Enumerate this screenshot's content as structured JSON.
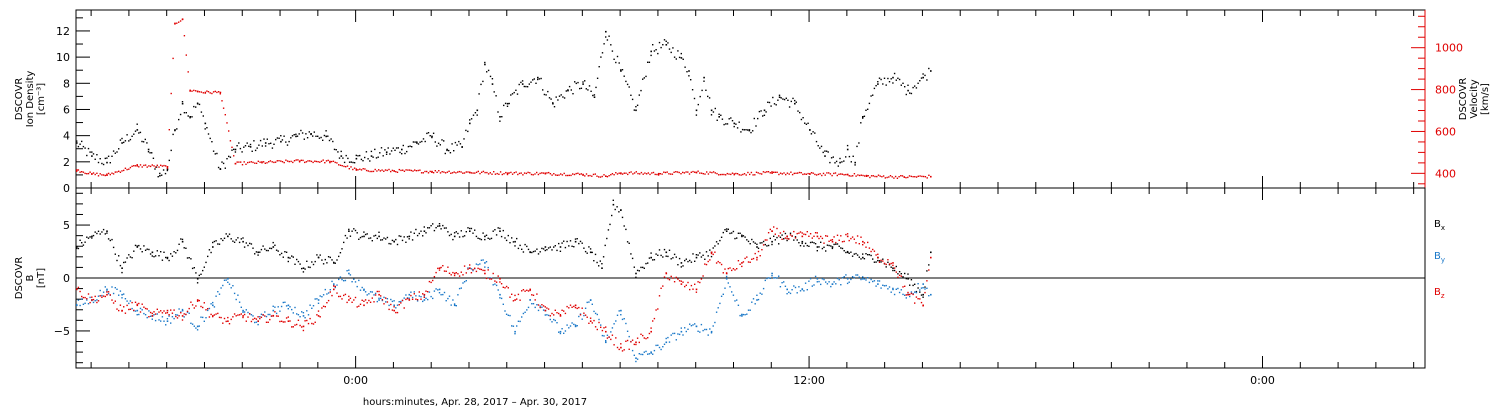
{
  "figure": {
    "xlabel": "hours:minutes, Apr. 28, 2017 – Apr. 30, 2017",
    "x_ticks": [
      {
        "label": "0:00",
        "hours": 24
      },
      {
        "label": "12:00",
        "hours": 36
      },
      {
        "label": "0:00",
        "hours": 48
      }
    ]
  },
  "chart_data": [
    {
      "type": "scatter",
      "name": "density-velocity-panel",
      "ylabel_left": [
        "DSCOVR",
        "Ion Density",
        "[cm⁻³]"
      ],
      "ylabel_right": [
        "DSCOVR",
        "Velocity",
        "[km/s]"
      ],
      "x_units": "hours since Apr. 28, 2017 0:00",
      "xlim": [
        16.6,
        52.3
      ],
      "ylim_left": [
        0,
        13.6
      ],
      "ylim_right": [
        330,
        1180
      ],
      "yticks_left": [
        0,
        2,
        4,
        6,
        8,
        10,
        12
      ],
      "yticks_right": [
        400,
        600,
        800,
        1000
      ],
      "series": [
        {
          "name": "Ion Density",
          "axis": "left",
          "color": "#000000",
          "x": [
            16.6,
            17.0,
            17.4,
            17.8,
            18.2,
            18.5,
            18.8,
            19.0,
            19.2,
            19.4,
            19.6,
            19.8,
            20.0,
            20.4,
            20.8,
            21.2,
            21.6,
            22.0,
            22.4,
            22.8,
            23.2,
            23.6,
            24.0,
            24.4,
            24.8,
            25.2,
            25.6,
            26.0,
            26.4,
            26.8,
            27.0,
            27.2,
            27.4,
            27.6,
            27.8,
            28.0,
            28.4,
            28.8,
            29.2,
            29.6,
            30.0,
            30.3,
            30.6,
            31.0,
            31.4,
            31.8,
            32.2,
            32.6,
            32.8,
            33.0,
            33.2,
            33.4,
            33.6,
            34.0,
            34.4,
            34.8,
            35.2,
            35.6,
            36.0,
            36.4,
            36.8,
            37.0,
            37.2,
            37.4,
            37.8,
            38.2,
            38.6,
            39.0,
            39.2
          ],
          "values": [
            3.5,
            2.5,
            2.0,
            3.5,
            4.5,
            3.0,
            1.0,
            1.5,
            4.5,
            6.5,
            5.5,
            6.5,
            5.0,
            1.5,
            3.0,
            3.2,
            3.5,
            3.6,
            4.0,
            4.2,
            4.0,
            2.5,
            2.3,
            2.5,
            2.8,
            3.0,
            3.5,
            4.0,
            3.0,
            3.2,
            5.0,
            6.0,
            9.5,
            8.0,
            5.5,
            6.5,
            8.0,
            8.5,
            6.5,
            7.5,
            8.0,
            7.0,
            12.0,
            9.0,
            6.0,
            10.5,
            11.0,
            10.0,
            9.0,
            6.0,
            8.5,
            6.0,
            5.5,
            5.0,
            4.5,
            6.0,
            7.0,
            6.5,
            4.5,
            2.5,
            2.0,
            3.0,
            2.0,
            5.5,
            8.0,
            8.5,
            7.5,
            8.5,
            9.0
          ]
        },
        {
          "name": "Velocity",
          "axis": "right",
          "color": "#e00000",
          "x": [
            16.6,
            17.0,
            17.4,
            18.2,
            19.0,
            19.2,
            19.4,
            19.6,
            19.8,
            20.0,
            20.4,
            20.8,
            21.5,
            22.5,
            23.3,
            24.0,
            25.0,
            26.0,
            27.0,
            28.0,
            29.0,
            30.0,
            30.6,
            31.0,
            32.0,
            33.0,
            34.0,
            35.0,
            36.0,
            37.0,
            37.5,
            38.5,
            39.2
          ],
          "values": [
            420,
            400,
            395,
            440,
            435,
            1120,
            1140,
            800,
            795,
            790,
            790,
            450,
            455,
            462,
            460,
            420,
            415,
            412,
            408,
            404,
            402,
            398,
            390,
            405,
            402,
            408,
            400,
            405,
            400,
            398,
            390,
            386,
            388
          ]
        }
      ]
    },
    {
      "type": "scatter",
      "name": "magnetic-field-panel",
      "ylabel": [
        "DSCOVR",
        "B",
        "[nT]"
      ],
      "x_units": "hours since Apr. 28, 2017 0:00",
      "xlim": [
        16.6,
        52.3
      ],
      "ylim": [
        -8.5,
        8.5
      ],
      "yticks": [
        -5,
        0,
        5
      ],
      "zero_line": true,
      "legend_placement": "right",
      "series": [
        {
          "name": "Bx",
          "label_main": "B",
          "label_sub": "x",
          "color": "#000000",
          "x": [
            16.6,
            17.0,
            17.4,
            17.8,
            18.2,
            18.6,
            19.0,
            19.4,
            19.8,
            20.2,
            20.6,
            21.0,
            21.4,
            21.8,
            22.2,
            22.6,
            23.0,
            23.4,
            23.8,
            24.2,
            24.6,
            25.0,
            25.4,
            25.8,
            26.2,
            26.6,
            27.0,
            27.4,
            27.8,
            28.2,
            28.6,
            29.0,
            29.4,
            29.8,
            30.2,
            30.5,
            30.8,
            31.0,
            31.4,
            31.8,
            32.2,
            32.6,
            33.0,
            33.4,
            33.8,
            34.2,
            34.6,
            35.0,
            35.4,
            35.8,
            36.2,
            36.6,
            37.0,
            37.4,
            37.8,
            38.2,
            38.6,
            39.0,
            39.2
          ],
          "values": [
            3.0,
            4.0,
            4.5,
            1.0,
            3.0,
            2.5,
            2.0,
            3.5,
            0.0,
            3.0,
            4.0,
            3.5,
            2.5,
            3.0,
            2.0,
            1.0,
            2.0,
            1.5,
            4.5,
            4.0,
            4.0,
            3.5,
            4.0,
            4.5,
            5.0,
            4.0,
            4.5,
            4.0,
            4.5,
            3.5,
            2.5,
            3.0,
            3.0,
            3.5,
            2.5,
            1.0,
            7.0,
            6.5,
            0.5,
            2.0,
            2.5,
            1.5,
            2.0,
            2.5,
            4.5,
            4.0,
            3.0,
            3.5,
            4.0,
            3.5,
            3.0,
            3.0,
            2.5,
            2.0,
            2.0,
            1.0,
            0.0,
            -1.5,
            2.5
          ]
        },
        {
          "name": "By",
          "label_main": "B",
          "label_sub": "y",
          "color": "#1a78c8",
          "x": [
            16.6,
            17.0,
            17.4,
            17.8,
            18.2,
            18.6,
            19.0,
            19.4,
            19.8,
            20.2,
            20.6,
            21.0,
            21.4,
            21.8,
            22.2,
            22.6,
            23.0,
            23.4,
            23.8,
            24.2,
            24.6,
            25.0,
            25.4,
            25.8,
            26.2,
            26.6,
            27.0,
            27.4,
            27.8,
            28.2,
            28.6,
            29.0,
            29.4,
            29.8,
            30.2,
            30.6,
            31.0,
            31.4,
            31.8,
            32.2,
            32.6,
            33.0,
            33.4,
            33.8,
            34.2,
            34.6,
            35.0,
            35.4,
            35.8,
            36.2,
            36.6,
            37.0,
            37.4,
            37.8,
            38.2,
            38.6,
            39.0,
            39.2
          ],
          "values": [
            -2.5,
            -2.0,
            -1.0,
            -1.5,
            -3.0,
            -3.5,
            -4.0,
            -3.0,
            -4.5,
            -2.5,
            0.0,
            -3.0,
            -4.0,
            -3.0,
            -2.5,
            -3.5,
            -2.0,
            -0.5,
            0.5,
            -1.0,
            -2.0,
            -2.5,
            -1.5,
            -2.0,
            -1.0,
            -2.5,
            1.0,
            1.5,
            -1.5,
            -5.0,
            -2.0,
            -3.0,
            -5.0,
            -4.5,
            -2.0,
            -6.0,
            -3.0,
            -7.5,
            -7.0,
            -6.0,
            -5.0,
            -4.5,
            -5.0,
            0.0,
            -3.5,
            -2.0,
            0.5,
            -1.0,
            -1.0,
            0.0,
            -0.5,
            0.0,
            0.0,
            -0.5,
            -1.0,
            -1.5,
            -0.5,
            -1.5
          ]
        },
        {
          "name": "Bz",
          "label_main": "B",
          "label_sub": "z",
          "color": "#e00000",
          "x": [
            16.6,
            17.0,
            17.4,
            17.8,
            18.2,
            18.6,
            19.0,
            19.4,
            19.8,
            20.2,
            20.6,
            21.0,
            21.4,
            21.8,
            22.2,
            22.6,
            23.0,
            23.4,
            23.8,
            24.2,
            24.6,
            25.0,
            25.4,
            25.8,
            26.2,
            26.6,
            27.0,
            27.4,
            27.8,
            28.2,
            28.6,
            29.0,
            29.4,
            29.8,
            30.2,
            30.6,
            31.0,
            31.4,
            31.8,
            32.2,
            32.6,
            33.0,
            33.4,
            33.8,
            34.2,
            34.6,
            35.0,
            35.4,
            35.8,
            36.2,
            36.6,
            37.0,
            37.4,
            37.8,
            38.2,
            38.6,
            39.0,
            39.2
          ],
          "values": [
            -1.0,
            -2.0,
            -1.5,
            -3.0,
            -2.5,
            -3.5,
            -3.0,
            -3.5,
            -2.0,
            -3.5,
            -4.0,
            -3.5,
            -4.0,
            -3.5,
            -4.0,
            -4.5,
            -3.5,
            -1.0,
            -2.0,
            -2.5,
            -1.5,
            -3.0,
            -2.0,
            -1.5,
            1.0,
            0.5,
            1.0,
            0.5,
            0.0,
            -2.0,
            -1.0,
            -3.0,
            -3.5,
            -2.5,
            -4.0,
            -5.0,
            -6.5,
            -6.0,
            -5.0,
            0.5,
            -0.5,
            -1.0,
            2.5,
            0.5,
            1.5,
            2.0,
            4.5,
            4.0,
            4.0,
            4.0,
            3.5,
            4.0,
            3.5,
            2.0,
            1.5,
            -1.5,
            -2.5,
            2.0
          ]
        }
      ]
    }
  ]
}
